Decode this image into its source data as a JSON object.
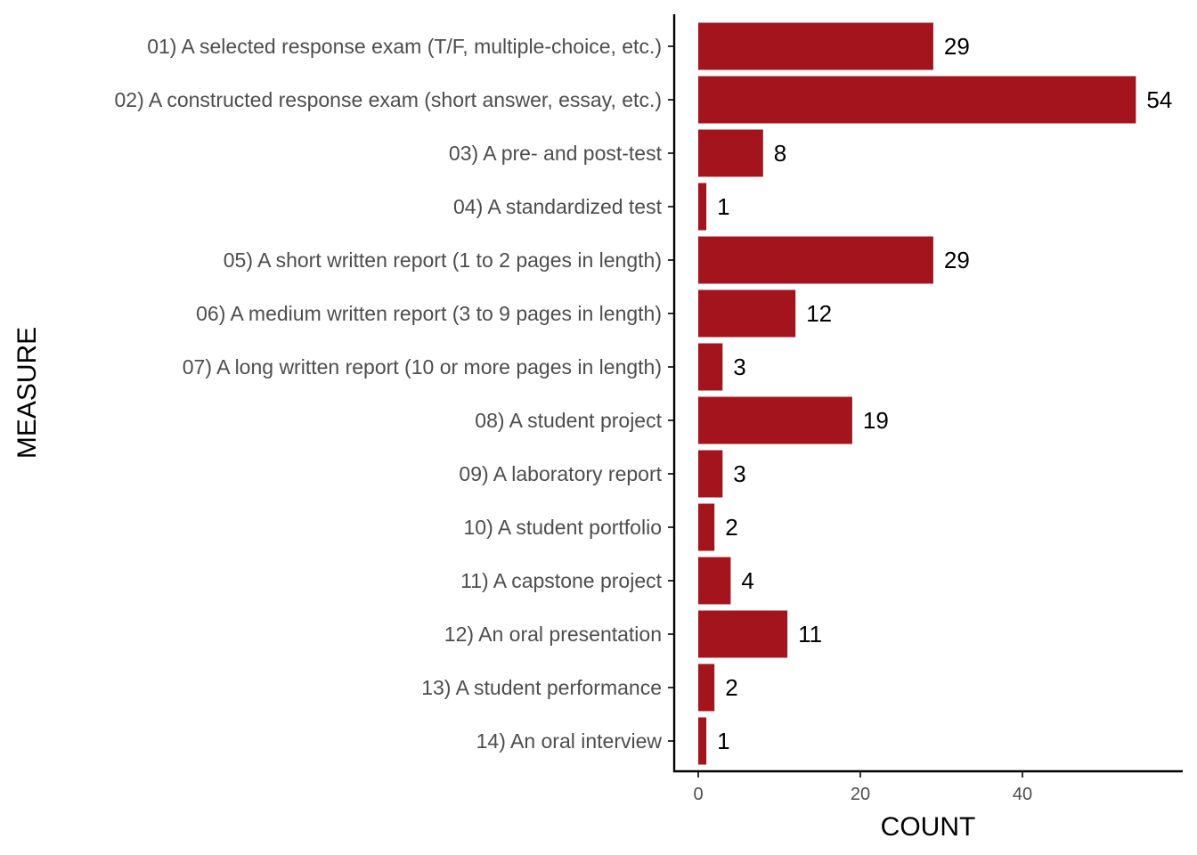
{
  "chart_data": {
    "type": "bar",
    "orientation": "horizontal",
    "categories": [
      "01) A selected response exam (T/F, multiple-choice, etc.)",
      "02) A constructed response exam (short answer, essay, etc.)",
      "03) A pre- and post-test",
      "04) A standardized test",
      "05) A short written report (1 to 2 pages in length)",
      "06) A medium written report (3 to 9 pages in length)",
      "07) A long written report (10 or more pages in length)",
      "08) A student project",
      "09) A laboratory report",
      "10) A student portfolio",
      "11) A capstone project",
      "12) An oral presentation",
      "13) A student performance",
      "14) An oral interview"
    ],
    "values": [
      29,
      54,
      8,
      1,
      29,
      12,
      3,
      19,
      3,
      2,
      4,
      11,
      2,
      1
    ],
    "data_labels": [
      "29",
      "54",
      "8",
      "1",
      "29",
      "12",
      "3",
      "19",
      "3",
      "2",
      "4",
      "11",
      "2",
      "1"
    ],
    "xlabel": "COUNT",
    "ylabel": "MEASURE",
    "xlim": [
      0,
      60
    ],
    "xticks": [
      "0",
      "20",
      "40"
    ],
    "bar_color": "#A3141C",
    "grid": false,
    "legend": "none"
  }
}
